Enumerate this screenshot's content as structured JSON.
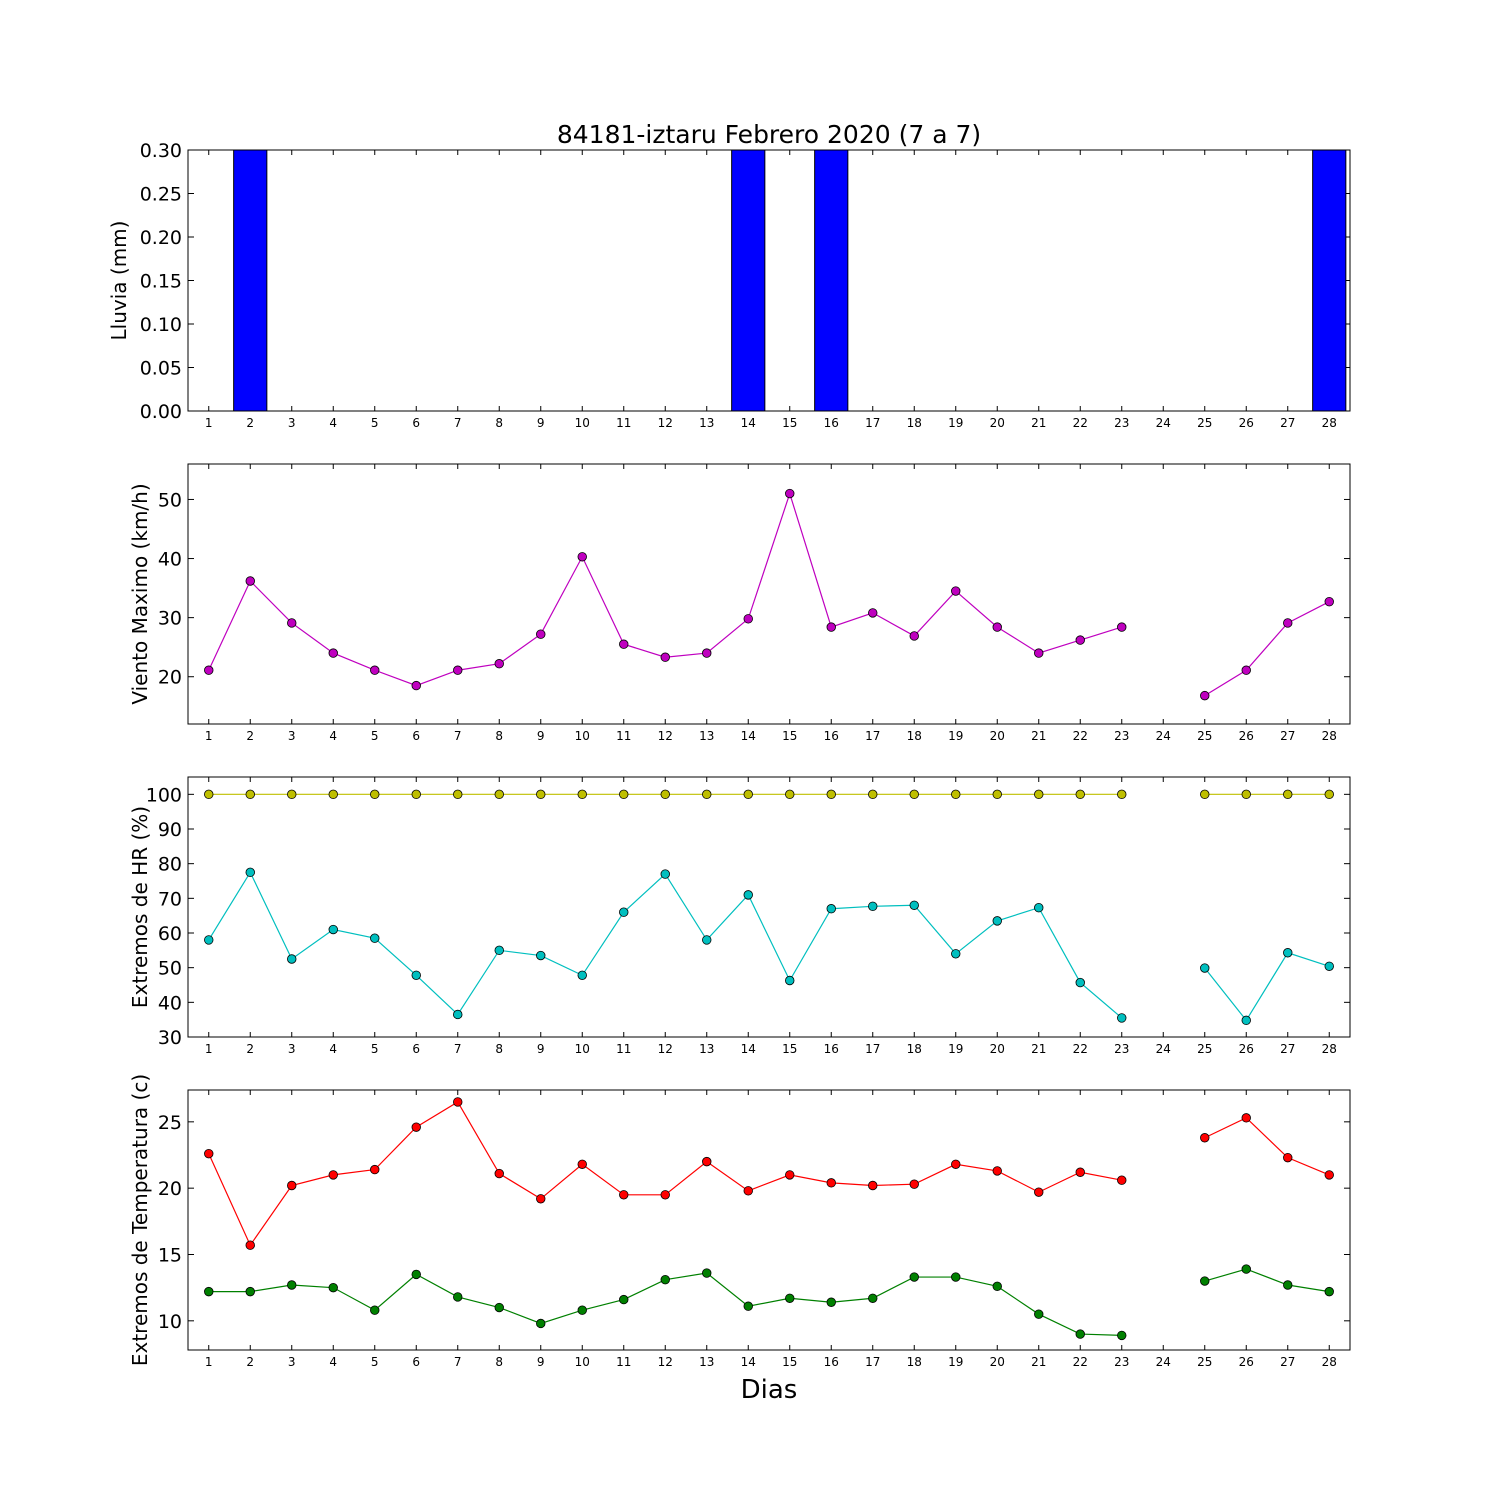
{
  "title": "84181-iztaru Febrero 2020  (7 a 7)",
  "xlabel": "Dias",
  "colors": {
    "rain": "#0000ff",
    "wind": "#bf00bf",
    "hr_max": "#bfbf00",
    "hr_min": "#00bfbf",
    "temp_max": "#ff0000",
    "temp_min": "#008000"
  },
  "chart_data": [
    {
      "type": "bar",
      "ylabel": "Lluvia (mm)",
      "ylim": [
        0,
        0.3
      ],
      "yticks": [
        "0.00",
        "0.05",
        "0.10",
        "0.15",
        "0.20",
        "0.25",
        "0.30"
      ],
      "x": [
        1,
        2,
        3,
        4,
        5,
        6,
        7,
        8,
        9,
        10,
        11,
        12,
        13,
        14,
        15,
        16,
        17,
        18,
        19,
        20,
        21,
        22,
        23,
        24,
        25,
        26,
        27,
        28
      ],
      "xticks": [
        "1",
        "2",
        "3",
        "4",
        "5",
        "6",
        "7",
        "8",
        "9",
        "10",
        "11",
        "12",
        "13",
        "14",
        "15",
        "16",
        "17",
        "18",
        "19",
        "20",
        "21",
        "22",
        "23",
        "24",
        "25",
        "26",
        "27",
        "28"
      ],
      "series": [
        {
          "values": [
            0,
            0.3,
            0,
            0,
            0,
            0,
            0,
            0,
            0,
            0,
            0,
            0,
            0,
            0.3,
            0,
            0.3,
            0,
            0,
            0,
            0,
            0,
            0,
            0,
            0,
            0,
            0,
            0,
            0.3
          ],
          "color": "#0000ff"
        }
      ]
    },
    {
      "type": "line",
      "ylabel": "Viento Maximo (km/h)",
      "ylim": [
        12,
        56
      ],
      "yticks": [
        "20",
        "30",
        "40",
        "50"
      ],
      "x": [
        1,
        2,
        3,
        4,
        5,
        6,
        7,
        8,
        9,
        10,
        11,
        12,
        13,
        14,
        15,
        16,
        17,
        18,
        19,
        20,
        21,
        22,
        23,
        24,
        25,
        26,
        27,
        28
      ],
      "xticks": [
        "1",
        "2",
        "3",
        "4",
        "5",
        "6",
        "7",
        "8",
        "9",
        "10",
        "11",
        "12",
        "13",
        "14",
        "15",
        "16",
        "17",
        "18",
        "19",
        "20",
        "21",
        "22",
        "23",
        "24",
        "25",
        "26",
        "27",
        "28"
      ],
      "series": [
        {
          "values": [
            21.1,
            36.2,
            29.1,
            24,
            21.1,
            18.5,
            21.1,
            22.2,
            27.2,
            40.3,
            25.5,
            23.3,
            24,
            29.8,
            51,
            28.4,
            30.8,
            26.9,
            34.5,
            28.4,
            24,
            26.2,
            28.4,
            null,
            16.8,
            21.1,
            29.1,
            32.7
          ],
          "color": "#bf00bf"
        }
      ]
    },
    {
      "type": "line",
      "ylabel": "Extremos de HR (%)",
      "ylim": [
        30,
        105
      ],
      "yticks": [
        "30",
        "40",
        "50",
        "60",
        "70",
        "80",
        "90",
        "100"
      ],
      "x": [
        1,
        2,
        3,
        4,
        5,
        6,
        7,
        8,
        9,
        10,
        11,
        12,
        13,
        14,
        15,
        16,
        17,
        18,
        19,
        20,
        21,
        22,
        23,
        24,
        25,
        26,
        27,
        28
      ],
      "xticks": [
        "1",
        "2",
        "3",
        "4",
        "5",
        "6",
        "7",
        "8",
        "9",
        "10",
        "11",
        "12",
        "13",
        "14",
        "15",
        "16",
        "17",
        "18",
        "19",
        "20",
        "21",
        "22",
        "23",
        "24",
        "25",
        "26",
        "27",
        "28"
      ],
      "series": [
        {
          "values": [
            100,
            100,
            100,
            100,
            100,
            100,
            100,
            100,
            100,
            100,
            100,
            100,
            100,
            100,
            100,
            100,
            100,
            100,
            100,
            100,
            100,
            100,
            100,
            null,
            100,
            100,
            100,
            100
          ],
          "color": "#bfbf00"
        },
        {
          "values": [
            58,
            77.5,
            52.5,
            61,
            58.5,
            47.8,
            36.5,
            55,
            53.5,
            47.8,
            66,
            77,
            58,
            71,
            46.3,
            67,
            67.7,
            68,
            54,
            63.5,
            67.3,
            45.7,
            35.5,
            null,
            49.9,
            34.8,
            54.3,
            50.4
          ],
          "color": "#00bfbf"
        }
      ]
    },
    {
      "type": "line",
      "ylabel": "Extremos de Temperatura (c)",
      "ylim": [
        7.8,
        27.4
      ],
      "yticks": [
        "10",
        "15",
        "20",
        "25"
      ],
      "x": [
        1,
        2,
        3,
        4,
        5,
        6,
        7,
        8,
        9,
        10,
        11,
        12,
        13,
        14,
        15,
        16,
        17,
        18,
        19,
        20,
        21,
        22,
        23,
        24,
        25,
        26,
        27,
        28
      ],
      "xticks": [
        "1",
        "2",
        "3",
        "4",
        "5",
        "6",
        "7",
        "8",
        "9",
        "10",
        "11",
        "12",
        "13",
        "14",
        "15",
        "16",
        "17",
        "18",
        "19",
        "20",
        "21",
        "22",
        "23",
        "24",
        "25",
        "26",
        "27",
        "28"
      ],
      "series": [
        {
          "values": [
            22.6,
            15.7,
            20.2,
            21,
            21.4,
            24.6,
            26.5,
            21.1,
            19.2,
            21.8,
            19.5,
            19.5,
            22,
            19.8,
            21,
            20.4,
            20.2,
            20.3,
            21.8,
            21.3,
            19.7,
            21.2,
            20.6,
            null,
            23.8,
            25.3,
            22.3,
            21
          ],
          "color": "#ff0000"
        },
        {
          "values": [
            12.2,
            12.2,
            12.7,
            12.5,
            10.8,
            13.5,
            11.8,
            11,
            9.8,
            10.8,
            11.6,
            13.1,
            13.6,
            11.1,
            11.7,
            11.4,
            11.7,
            13.3,
            13.3,
            12.6,
            10.5,
            9,
            8.9,
            null,
            13,
            13.9,
            12.7,
            12.2
          ],
          "color": "#008000"
        }
      ]
    }
  ]
}
